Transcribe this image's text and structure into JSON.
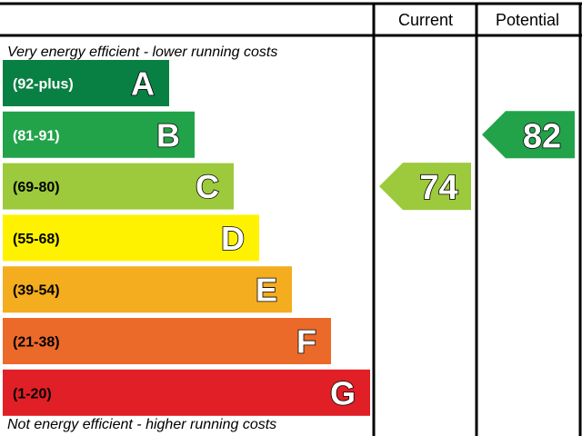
{
  "chart_data": {
    "type": "bar",
    "top_caption": "Very energy efficient - lower running costs",
    "bottom_caption": "Not energy efficient - higher running costs",
    "columns": {
      "current_label": "Current",
      "potential_label": "Potential"
    },
    "bands": [
      {
        "letter": "A",
        "range": "(92-plus)",
        "color": "#098043",
        "text_color": "#ffffff"
      },
      {
        "letter": "B",
        "range": "(81-91)",
        "color": "#22a34a",
        "text_color": "#ffffff"
      },
      {
        "letter": "C",
        "range": "(69-80)",
        "color": "#9cca3c",
        "text_color": "#000000"
      },
      {
        "letter": "D",
        "range": "(55-68)",
        "color": "#fff200",
        "text_color": "#000000"
      },
      {
        "letter": "E",
        "range": "(39-54)",
        "color": "#f4ad1f",
        "text_color": "#000000"
      },
      {
        "letter": "F",
        "range": "(21-38)",
        "color": "#eb6a2a",
        "text_color": "#000000"
      },
      {
        "letter": "G",
        "range": "(1-20)",
        "color": "#e11f26",
        "text_color": "#000000"
      }
    ],
    "current": {
      "value": 74,
      "band": "C",
      "color": "#9cca3c"
    },
    "potential": {
      "value": 82,
      "band": "B",
      "color": "#22a34a"
    }
  }
}
